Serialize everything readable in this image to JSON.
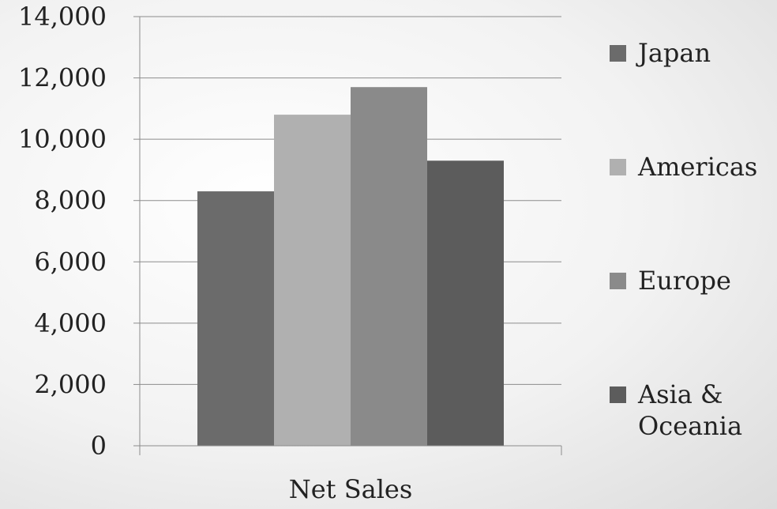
{
  "chart_data": {
    "type": "bar",
    "categories": [
      "Net Sales"
    ],
    "series": [
      {
        "name": "Japan",
        "values": [
          8300
        ],
        "color": "#6b6b6b"
      },
      {
        "name": "Americas",
        "values": [
          10800
        ],
        "color": "#b0b0b0"
      },
      {
        "name": "Europe",
        "values": [
          11700
        ],
        "color": "#8a8a8a"
      },
      {
        "name": "Asia & Oceania",
        "values": [
          9300
        ],
        "color": "#5c5c5c"
      }
    ],
    "legend_lines": {
      "Japan": [
        "Japan"
      ],
      "Americas": [
        "Americas"
      ],
      "Europe": [
        "Europe"
      ],
      "Asia & Oceania": [
        "Asia &",
        "Oceania"
      ]
    },
    "title": "",
    "xlabel": "",
    "ylabel": "",
    "ylim": [
      0,
      14000
    ],
    "yticks": [
      0,
      2000,
      4000,
      6000,
      8000,
      10000,
      12000,
      14000
    ],
    "ytick_labels": [
      "0",
      "2,000",
      "4,000",
      "6,000",
      "8,000",
      "10,000",
      "12,000",
      "14,000"
    ],
    "grid": true,
    "legend_position": "right"
  }
}
